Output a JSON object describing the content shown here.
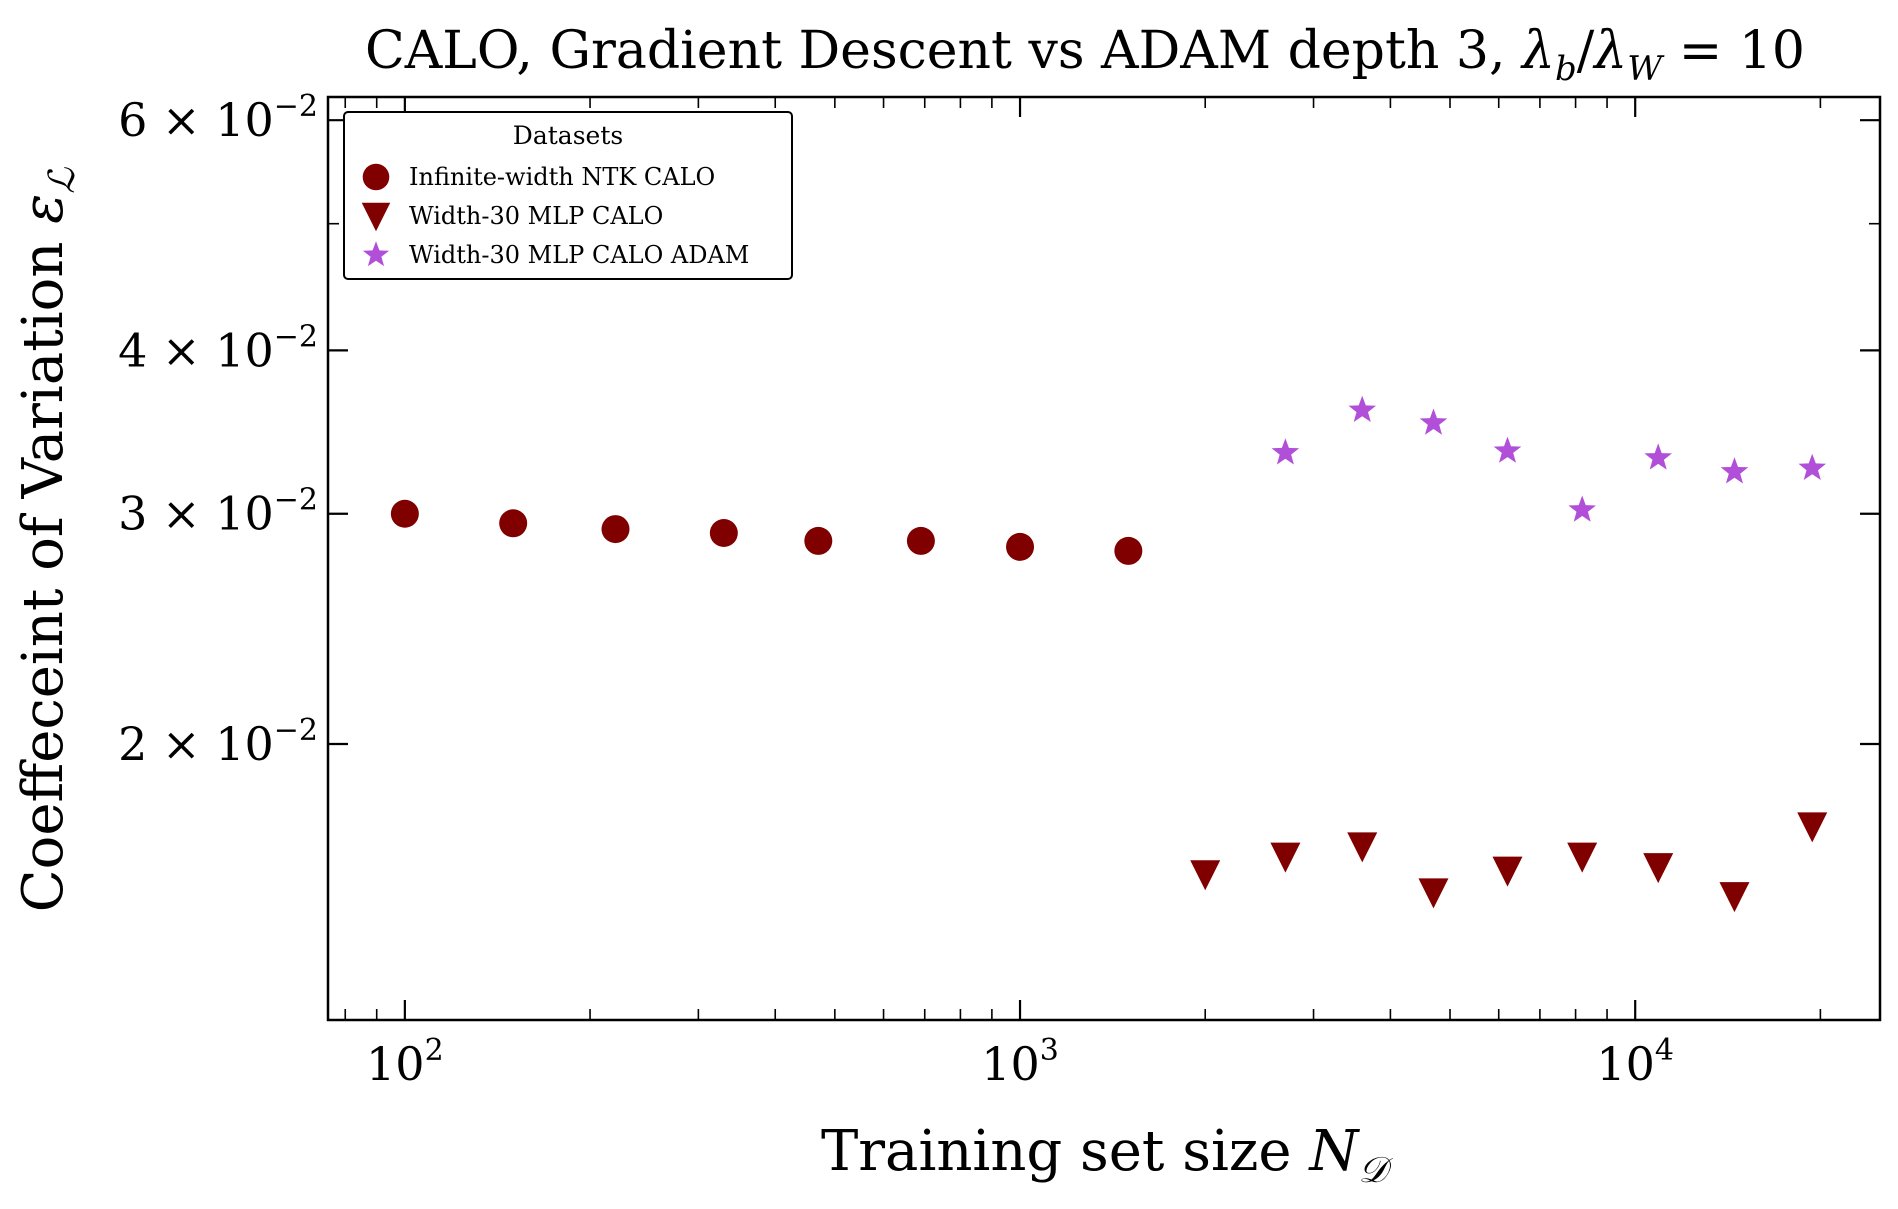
{
  "chart_data": {
    "type": "scatter",
    "title": "CALO, Gradient Descent vs ADAM depth 3, λ_b/λ_W = 10",
    "title_parts": {
      "prefix": "CALO, Gradient Descent vs ADAM depth 3, ",
      "lambda": "λ",
      "sub_b": "b",
      "slash": "/",
      "sub_W": "W",
      "equals": " = 10"
    },
    "xlabel": "Training set size N_D",
    "xlabel_parts": {
      "text": "Training set size ",
      "symbol": "N",
      "sub": "𝒟"
    },
    "ylabel": "Coeffeceint of Variation ε_L",
    "ylabel_parts": {
      "text": "Coeffeceint of Variation ",
      "symbol": "ε",
      "sub": "ℒ"
    },
    "xscale": "log",
    "yscale": "log",
    "xlim": [
      75,
      25000
    ],
    "ylim": [
      0.0123,
      0.0625
    ],
    "xticks": [
      {
        "value": 100,
        "base": "10",
        "exp": "2"
      },
      {
        "value": 1000,
        "base": "10",
        "exp": "3"
      },
      {
        "value": 10000,
        "base": "10",
        "exp": "4"
      }
    ],
    "yticks": [
      {
        "value": 0.02,
        "mant": "2",
        "times": " × ",
        "base": "10",
        "exp": "−2"
      },
      {
        "value": 0.03,
        "mant": "3",
        "times": " × ",
        "base": "10",
        "exp": "−2"
      },
      {
        "value": 0.04,
        "mant": "4",
        "times": " × ",
        "base": "10",
        "exp": "−2"
      },
      {
        "value": 0.06,
        "mant": "6",
        "times": " × ",
        "base": "10",
        "exp": "−2"
      }
    ],
    "legend": {
      "title": "Datasets",
      "position": "upper-left"
    },
    "series": [
      {
        "name": "Infinite-width NTK CALO",
        "marker": "circle",
        "color": "#800000",
        "x": [
          100,
          150,
          220,
          330,
          470,
          690,
          1000,
          1500
        ],
        "y": [
          0.03,
          0.0295,
          0.0292,
          0.029,
          0.0286,
          0.0286,
          0.0283,
          0.0281
        ]
      },
      {
        "name": "Width-30 MLP CALO",
        "marker": "triangle-down",
        "color": "#800000",
        "x": [
          2000,
          2700,
          3600,
          4700,
          6200,
          8200,
          10900,
          14500,
          19400
        ],
        "y": [
          0.0159,
          0.0164,
          0.0167,
          0.0154,
          0.016,
          0.0164,
          0.0161,
          0.0153,
          0.0173
        ]
      },
      {
        "name": "Width-30 MLP CALO ADAM",
        "marker": "star",
        "color": "#b14fd8",
        "x": [
          2700,
          3600,
          4700,
          6200,
          8200,
          10900,
          14500,
          19400
        ],
        "y": [
          0.0334,
          0.036,
          0.0352,
          0.0335,
          0.0302,
          0.0331,
          0.0323,
          0.0325
        ]
      }
    ]
  }
}
